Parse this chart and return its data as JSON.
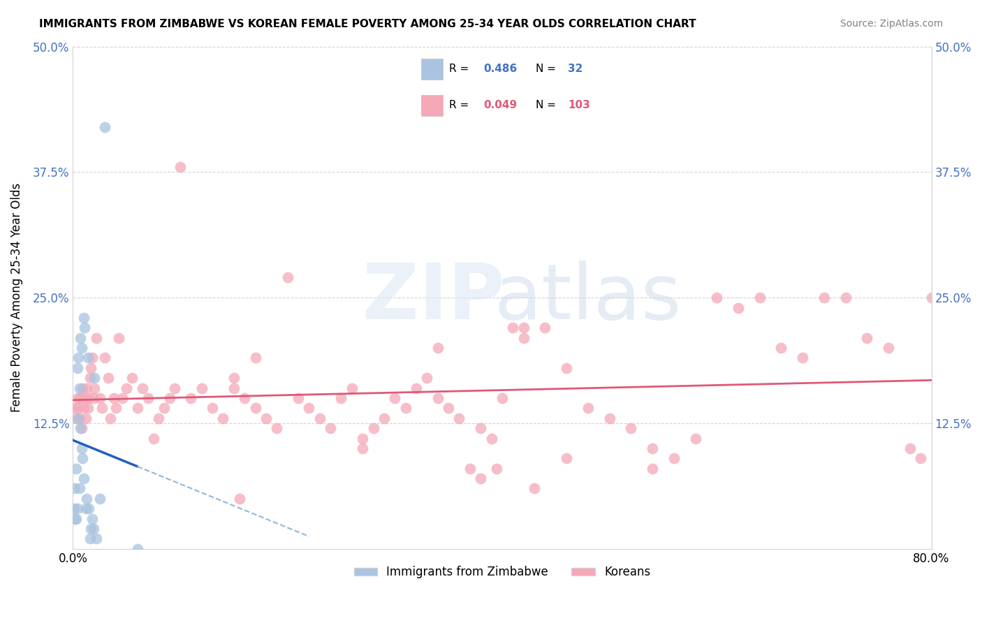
{
  "title": "IMMIGRANTS FROM ZIMBABWE VS KOREAN FEMALE POVERTY AMONG 25-34 YEAR OLDS CORRELATION CHART",
  "source": "Source: ZipAtlas.com",
  "ylabel": "Female Poverty Among 25-34 Year Olds",
  "xlim": [
    0,
    0.8
  ],
  "ylim": [
    0,
    0.5
  ],
  "R_zimbabwe": 0.486,
  "N_zimbabwe": 32,
  "R_korean": 0.049,
  "N_korean": 103,
  "color_zimbabwe": "#a8c4e0",
  "color_korean": "#f4a8b8",
  "line_color_zimbabwe": "#2060c0",
  "line_color_korean": "#e05878",
  "legend_R_color_zimbabwe": "#4472c4",
  "legend_N_color_zimbabwe": "#4472c4",
  "legend_R_color_korean": "#e05878",
  "legend_N_color_korean": "#e05878",
  "zim_x": [
    0.001,
    0.002,
    0.002,
    0.003,
    0.003,
    0.004,
    0.004,
    0.005,
    0.005,
    0.006,
    0.006,
    0.007,
    0.007,
    0.008,
    0.008,
    0.009,
    0.01,
    0.01,
    0.011,
    0.012,
    0.013,
    0.014,
    0.015,
    0.016,
    0.017,
    0.018,
    0.019,
    0.02,
    0.022,
    0.025,
    0.03,
    0.06
  ],
  "zim_y": [
    0.04,
    0.03,
    0.06,
    0.03,
    0.08,
    0.18,
    0.04,
    0.19,
    0.13,
    0.16,
    0.06,
    0.21,
    0.12,
    0.2,
    0.1,
    0.09,
    0.07,
    0.23,
    0.22,
    0.04,
    0.05,
    0.19,
    0.04,
    0.01,
    0.02,
    0.03,
    0.02,
    0.17,
    0.01,
    0.05,
    0.42,
    0.0
  ],
  "kor_x": [
    0.002,
    0.003,
    0.004,
    0.005,
    0.006,
    0.007,
    0.008,
    0.009,
    0.01,
    0.011,
    0.012,
    0.013,
    0.014,
    0.015,
    0.016,
    0.017,
    0.018,
    0.019,
    0.02,
    0.022,
    0.025,
    0.027,
    0.03,
    0.033,
    0.035,
    0.038,
    0.04,
    0.043,
    0.046,
    0.05,
    0.055,
    0.06,
    0.065,
    0.07,
    0.075,
    0.08,
    0.085,
    0.09,
    0.095,
    0.1,
    0.11,
    0.12,
    0.13,
    0.14,
    0.15,
    0.16,
    0.17,
    0.18,
    0.19,
    0.2,
    0.21,
    0.22,
    0.23,
    0.24,
    0.25,
    0.26,
    0.27,
    0.28,
    0.29,
    0.3,
    0.31,
    0.32,
    0.33,
    0.34,
    0.35,
    0.36,
    0.37,
    0.38,
    0.39,
    0.4,
    0.42,
    0.44,
    0.46,
    0.48,
    0.5,
    0.52,
    0.54,
    0.56,
    0.58,
    0.6,
    0.62,
    0.64,
    0.66,
    0.68,
    0.7,
    0.72,
    0.74,
    0.76,
    0.78,
    0.79,
    0.8,
    0.38,
    0.42,
    0.46,
    0.34,
    0.41,
    0.395,
    0.17,
    0.15,
    0.155,
    0.54,
    0.43,
    0.27
  ],
  "kor_y": [
    0.14,
    0.13,
    0.15,
    0.14,
    0.13,
    0.15,
    0.12,
    0.16,
    0.14,
    0.15,
    0.13,
    0.16,
    0.14,
    0.15,
    0.17,
    0.18,
    0.19,
    0.15,
    0.16,
    0.21,
    0.15,
    0.14,
    0.19,
    0.17,
    0.13,
    0.15,
    0.14,
    0.21,
    0.15,
    0.16,
    0.17,
    0.14,
    0.16,
    0.15,
    0.11,
    0.13,
    0.14,
    0.15,
    0.16,
    0.38,
    0.15,
    0.16,
    0.14,
    0.13,
    0.16,
    0.15,
    0.14,
    0.13,
    0.12,
    0.27,
    0.15,
    0.14,
    0.13,
    0.12,
    0.15,
    0.16,
    0.11,
    0.12,
    0.13,
    0.15,
    0.14,
    0.16,
    0.17,
    0.15,
    0.14,
    0.13,
    0.08,
    0.12,
    0.11,
    0.15,
    0.22,
    0.22,
    0.09,
    0.14,
    0.13,
    0.12,
    0.1,
    0.09,
    0.11,
    0.25,
    0.24,
    0.25,
    0.2,
    0.19,
    0.25,
    0.25,
    0.21,
    0.2,
    0.1,
    0.09,
    0.25,
    0.07,
    0.21,
    0.18,
    0.2,
    0.22,
    0.08,
    0.19,
    0.17,
    0.05,
    0.08,
    0.06,
    0.1
  ]
}
